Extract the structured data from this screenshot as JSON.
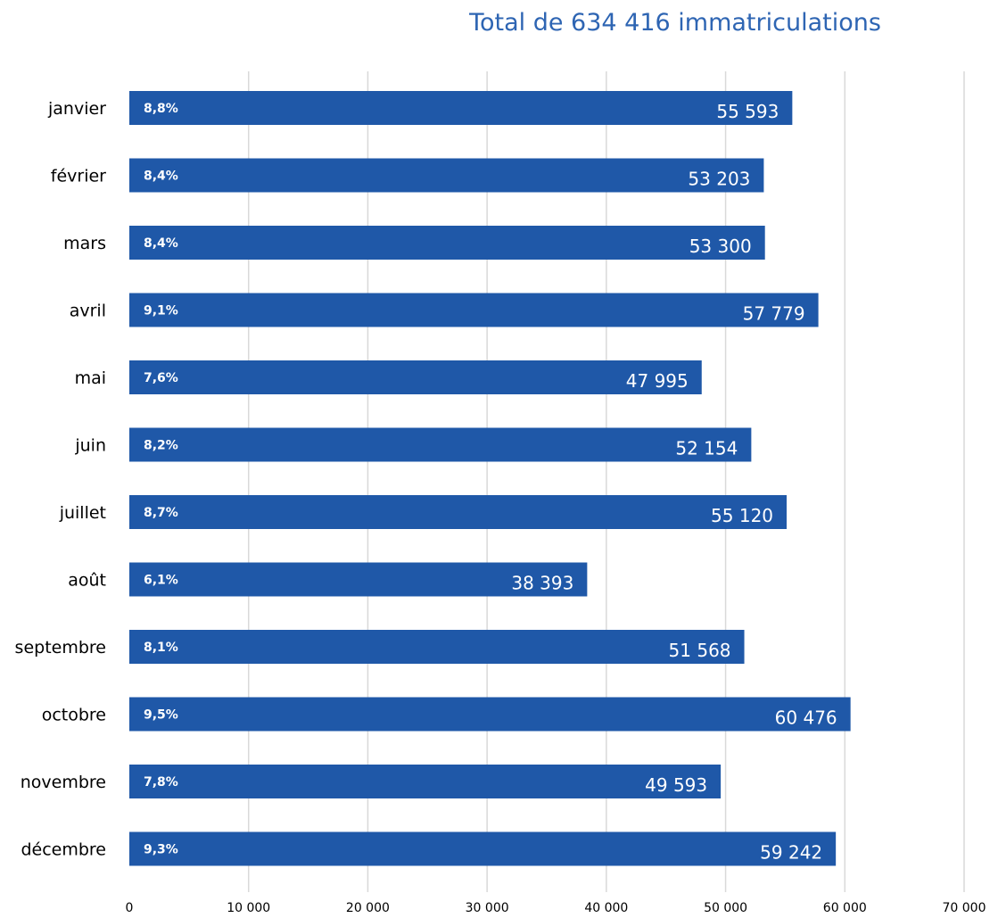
{
  "chart_data": {
    "type": "bar",
    "orientation": "horizontal",
    "title": "Total de 634 416 immatriculations",
    "categories": [
      "janvier",
      "février",
      "mars",
      "avril",
      "mai",
      "juin",
      "juillet",
      "août",
      "septembre",
      "octobre",
      "novembre",
      "décembre"
    ],
    "series": [
      {
        "values": [
          55593,
          53203,
          53300,
          57779,
          47995,
          52154,
          55120,
          38393,
          51568,
          60476,
          49593,
          59242
        ],
        "value_labels": [
          "55 593",
          "53 203",
          "53 300",
          "57 779",
          "47 995",
          "52 154",
          "55 120",
          "38 393",
          "51 568",
          "60 476",
          "49 593",
          "59 242"
        ],
        "share_labels": [
          "8,8%",
          "8,4%",
          "8,4%",
          "9,1%",
          "7,6%",
          "8,2%",
          "8,7%",
          "6,1%",
          "8,1%",
          "9,5%",
          "7,8%",
          "9,3%"
        ]
      }
    ],
    "xlim": [
      0,
      70000
    ],
    "x_ticks": [
      0,
      10000,
      20000,
      30000,
      40000,
      50000,
      60000,
      70000
    ],
    "x_tick_labels": [
      "0",
      "10 000",
      "20 000",
      "30 000",
      "40 000",
      "50 000",
      "60 000",
      "70 000"
    ],
    "xlabel": "",
    "ylabel": "",
    "grid": "vertical",
    "legend": "none",
    "colors": {
      "bar": "#1f58a8",
      "title": "#2e65b3",
      "grid": "#d9d9d9",
      "axis_text": "#000000",
      "bar_text": "#ffffff"
    }
  }
}
